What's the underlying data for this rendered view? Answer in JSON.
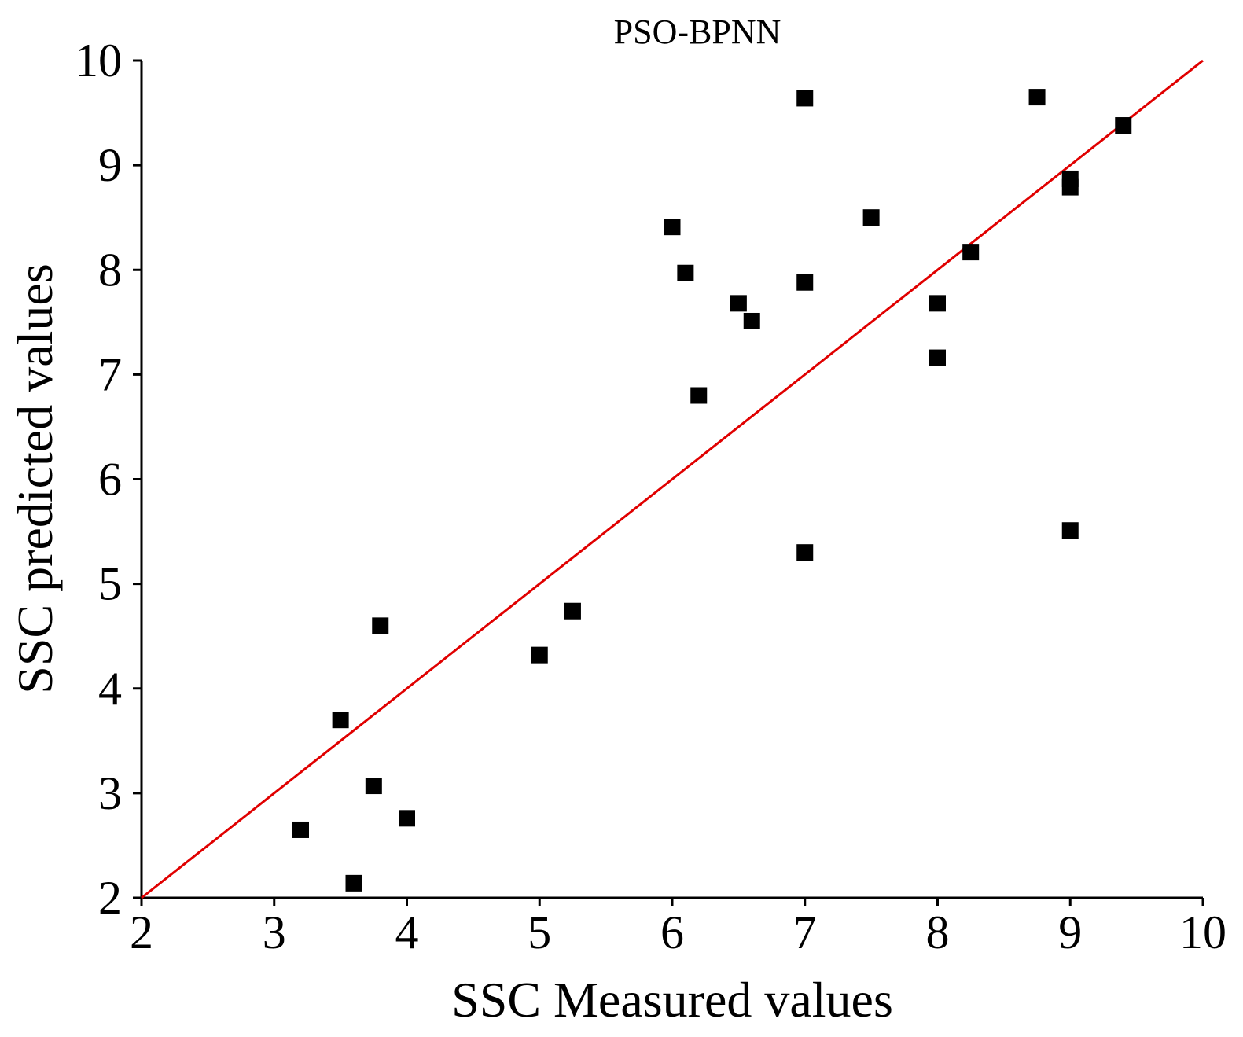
{
  "chart_data": {
    "type": "scatter",
    "title": "PSO-BPNN",
    "xlabel": "SSC Measured values",
    "ylabel": "SSC predicted values",
    "xlim": [
      2,
      10
    ],
    "ylim": [
      2,
      10
    ],
    "xticks": [
      "2",
      "3",
      "4",
      "5",
      "6",
      "7",
      "8",
      "9",
      "10"
    ],
    "yticks": [
      "2",
      "3",
      "4",
      "5",
      "6",
      "7",
      "8",
      "9",
      "10"
    ],
    "grid": false,
    "marker": "square",
    "marker_color": "#000000",
    "reference_line": {
      "from": [
        2,
        2
      ],
      "to": [
        10,
        10
      ],
      "color": "#e00000"
    },
    "points": [
      {
        "x": 3.2,
        "y": 2.65
      },
      {
        "x": 3.5,
        "y": 3.7
      },
      {
        "x": 3.6,
        "y": 2.14
      },
      {
        "x": 3.75,
        "y": 3.07
      },
      {
        "x": 3.8,
        "y": 4.6
      },
      {
        "x": 4.0,
        "y": 2.76
      },
      {
        "x": 5.0,
        "y": 4.32
      },
      {
        "x": 5.25,
        "y": 4.74
      },
      {
        "x": 6.0,
        "y": 8.41
      },
      {
        "x": 6.1,
        "y": 7.97
      },
      {
        "x": 6.2,
        "y": 6.8
      },
      {
        "x": 6.5,
        "y": 7.68
      },
      {
        "x": 6.6,
        "y": 7.51
      },
      {
        "x": 7.0,
        "y": 9.64
      },
      {
        "x": 7.0,
        "y": 7.88
      },
      {
        "x": 7.0,
        "y": 5.3
      },
      {
        "x": 7.5,
        "y": 8.5
      },
      {
        "x": 8.0,
        "y": 7.68
      },
      {
        "x": 8.0,
        "y": 7.16
      },
      {
        "x": 8.25,
        "y": 8.17
      },
      {
        "x": 8.75,
        "y": 9.65
      },
      {
        "x": 9.0,
        "y": 8.87
      },
      {
        "x": 9.0,
        "y": 8.79
      },
      {
        "x": 9.0,
        "y": 5.51
      },
      {
        "x": 9.4,
        "y": 9.38
      }
    ]
  }
}
